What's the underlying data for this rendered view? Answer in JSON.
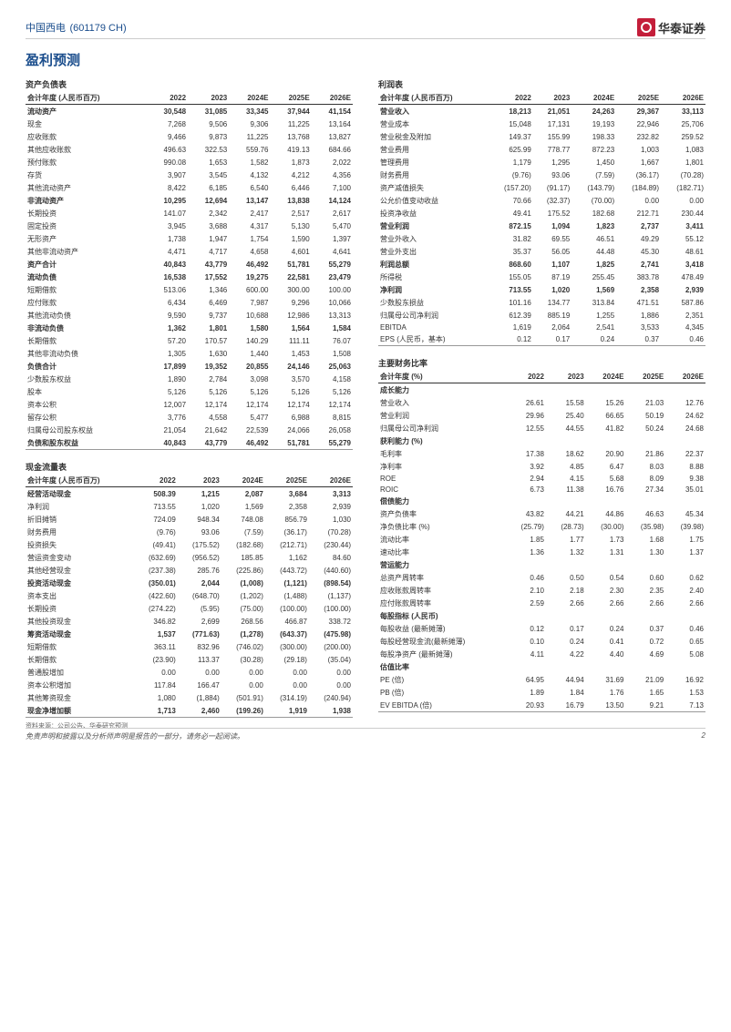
{
  "company": "中国西电",
  "ticker": "(601179 CH)",
  "brand": "华泰证券",
  "title": "盈利预测",
  "years": [
    "2022",
    "2023",
    "2024E",
    "2025E",
    "2026E"
  ],
  "bs": {
    "title": "资产负债表",
    "hdr": "会计年度 (人民币百万)",
    "rows": [
      {
        "l": "流动资产",
        "v": [
          "30,548",
          "31,085",
          "33,345",
          "37,944",
          "41,154"
        ],
        "b": 1
      },
      {
        "l": "现金",
        "v": [
          "7,268",
          "9,506",
          "9,306",
          "11,225",
          "13,164"
        ]
      },
      {
        "l": "应收账款",
        "v": [
          "9,466",
          "9,873",
          "11,225",
          "13,768",
          "13,827"
        ]
      },
      {
        "l": "其他应收账款",
        "v": [
          "496.63",
          "322.53",
          "559.76",
          "419.13",
          "684.66"
        ]
      },
      {
        "l": "预付账款",
        "v": [
          "990.08",
          "1,653",
          "1,582",
          "1,873",
          "2,022"
        ]
      },
      {
        "l": "存货",
        "v": [
          "3,907",
          "3,545",
          "4,132",
          "4,212",
          "4,356"
        ]
      },
      {
        "l": "其他流动资产",
        "v": [
          "8,422",
          "6,185",
          "6,540",
          "6,446",
          "7,100"
        ]
      },
      {
        "l": "非流动资产",
        "v": [
          "10,295",
          "12,694",
          "13,147",
          "13,838",
          "14,124"
        ],
        "b": 1
      },
      {
        "l": "长期投资",
        "v": [
          "141.07",
          "2,342",
          "2,417",
          "2,517",
          "2,617"
        ]
      },
      {
        "l": "固定投资",
        "v": [
          "3,945",
          "3,688",
          "4,317",
          "5,130",
          "5,470"
        ]
      },
      {
        "l": "无形资产",
        "v": [
          "1,738",
          "1,947",
          "1,754",
          "1,590",
          "1,397"
        ]
      },
      {
        "l": "其他非流动资产",
        "v": [
          "4,471",
          "4,717",
          "4,658",
          "4,601",
          "4,641"
        ]
      },
      {
        "l": "资产合计",
        "v": [
          "40,843",
          "43,779",
          "46,492",
          "51,781",
          "55,279"
        ],
        "b": 1
      },
      {
        "l": "流动负债",
        "v": [
          "16,538",
          "17,552",
          "19,275",
          "22,581",
          "23,479"
        ],
        "b": 1
      },
      {
        "l": "短期借款",
        "v": [
          "513.06",
          "1,346",
          "600.00",
          "300.00",
          "100.00"
        ]
      },
      {
        "l": "应付账款",
        "v": [
          "6,434",
          "6,469",
          "7,987",
          "9,296",
          "10,066"
        ]
      },
      {
        "l": "其他流动负债",
        "v": [
          "9,590",
          "9,737",
          "10,688",
          "12,986",
          "13,313"
        ]
      },
      {
        "l": "非流动负债",
        "v": [
          "1,362",
          "1,801",
          "1,580",
          "1,564",
          "1,584"
        ],
        "b": 1
      },
      {
        "l": "长期借款",
        "v": [
          "57.20",
          "170.57",
          "140.29",
          "111.11",
          "76.07"
        ]
      },
      {
        "l": "其他非流动负债",
        "v": [
          "1,305",
          "1,630",
          "1,440",
          "1,453",
          "1,508"
        ]
      },
      {
        "l": "负债合计",
        "v": [
          "17,899",
          "19,352",
          "20,855",
          "24,146",
          "25,063"
        ],
        "b": 1
      },
      {
        "l": "少数股东权益",
        "v": [
          "1,890",
          "2,784",
          "3,098",
          "3,570",
          "4,158"
        ]
      },
      {
        "l": "股本",
        "v": [
          "5,126",
          "5,126",
          "5,126",
          "5,126",
          "5,126"
        ]
      },
      {
        "l": "资本公积",
        "v": [
          "12,007",
          "12,174",
          "12,174",
          "12,174",
          "12,174"
        ]
      },
      {
        "l": "留存公积",
        "v": [
          "3,776",
          "4,558",
          "5,477",
          "6,988",
          "8,815"
        ]
      },
      {
        "l": "归属母公司股东权益",
        "v": [
          "21,054",
          "21,642",
          "22,539",
          "24,066",
          "26,058"
        ]
      },
      {
        "l": "负债和股东权益",
        "v": [
          "40,843",
          "43,779",
          "46,492",
          "51,781",
          "55,279"
        ],
        "b": 1,
        "bb": 1
      }
    ]
  },
  "cf": {
    "title": "现金流量表",
    "hdr": "会计年度 (人民币百万)",
    "rows": [
      {
        "l": "经营活动现金",
        "v": [
          "508.39",
          "1,215",
          "2,087",
          "3,684",
          "3,313"
        ],
        "b": 1
      },
      {
        "l": "净利润",
        "v": [
          "713.55",
          "1,020",
          "1,569",
          "2,358",
          "2,939"
        ]
      },
      {
        "l": "折旧摊销",
        "v": [
          "724.09",
          "948.34",
          "748.08",
          "856.79",
          "1,030"
        ]
      },
      {
        "l": "财务费用",
        "v": [
          "(9.76)",
          "93.06",
          "(7.59)",
          "(36.17)",
          "(70.28)"
        ]
      },
      {
        "l": "投资损失",
        "v": [
          "(49.41)",
          "(175.52)",
          "(182.68)",
          "(212.71)",
          "(230.44)"
        ]
      },
      {
        "l": "营运资金变动",
        "v": [
          "(632.69)",
          "(956.52)",
          "185.85",
          "1,162",
          "84.60"
        ]
      },
      {
        "l": "其他经营现金",
        "v": [
          "(237.38)",
          "285.76",
          "(225.86)",
          "(443.72)",
          "(440.60)"
        ]
      },
      {
        "l": "投资活动现金",
        "v": [
          "(350.01)",
          "2,044",
          "(1,008)",
          "(1,121)",
          "(898.54)"
        ],
        "b": 1
      },
      {
        "l": "资本支出",
        "v": [
          "(422.60)",
          "(648.70)",
          "(1,202)",
          "(1,488)",
          "(1,137)"
        ]
      },
      {
        "l": "长期投资",
        "v": [
          "(274.22)",
          "(5.95)",
          "(75.00)",
          "(100.00)",
          "(100.00)"
        ]
      },
      {
        "l": "其他投资现金",
        "v": [
          "346.82",
          "2,699",
          "268.56",
          "466.87",
          "338.72"
        ]
      },
      {
        "l": "筹资活动现金",
        "v": [
          "1,537",
          "(771.63)",
          "(1,278)",
          "(643.37)",
          "(475.98)"
        ],
        "b": 1
      },
      {
        "l": "短期借款",
        "v": [
          "363.11",
          "832.96",
          "(746.02)",
          "(300.00)",
          "(200.00)"
        ]
      },
      {
        "l": "长期借款",
        "v": [
          "(23.90)",
          "113.37",
          "(30.28)",
          "(29.18)",
          "(35.04)"
        ]
      },
      {
        "l": "普通股增加",
        "v": [
          "0.00",
          "0.00",
          "0.00",
          "0.00",
          "0.00"
        ]
      },
      {
        "l": "资本公积增加",
        "v": [
          "117.84",
          "166.47",
          "0.00",
          "0.00",
          "0.00"
        ]
      },
      {
        "l": "其他筹资现金",
        "v": [
          "1,080",
          "(1,884)",
          "(501.91)",
          "(314.19)",
          "(240.94)"
        ]
      },
      {
        "l": "现金净增加额",
        "v": [
          "1,713",
          "2,460",
          "(199.26)",
          "1,919",
          "1,938"
        ],
        "b": 1,
        "bb": 1
      }
    ]
  },
  "is": {
    "title": "利润表",
    "hdr": "会计年度 (人民币百万)",
    "rows": [
      {
        "l": "营业收入",
        "v": [
          "18,213",
          "21,051",
          "24,263",
          "29,367",
          "33,113"
        ],
        "b": 1
      },
      {
        "l": "营业成本",
        "v": [
          "15,048",
          "17,131",
          "19,193",
          "22,946",
          "25,706"
        ]
      },
      {
        "l": "营业税金及附加",
        "v": [
          "149.37",
          "155.99",
          "198.33",
          "232.82",
          "259.52"
        ]
      },
      {
        "l": "营业费用",
        "v": [
          "625.99",
          "778.77",
          "872.23",
          "1,003",
          "1,083"
        ]
      },
      {
        "l": "管理费用",
        "v": [
          "1,179",
          "1,295",
          "1,450",
          "1,667",
          "1,801"
        ]
      },
      {
        "l": "财务费用",
        "v": [
          "(9.76)",
          "93.06",
          "(7.59)",
          "(36.17)",
          "(70.28)"
        ]
      },
      {
        "l": "资产减值损失",
        "v": [
          "(157.20)",
          "(91.17)",
          "(143.79)",
          "(184.89)",
          "(182.71)"
        ]
      },
      {
        "l": "公允价值变动收益",
        "v": [
          "70.66",
          "(32.37)",
          "(70.00)",
          "0.00",
          "0.00"
        ]
      },
      {
        "l": "投资净收益",
        "v": [
          "49.41",
          "175.52",
          "182.68",
          "212.71",
          "230.44"
        ]
      },
      {
        "l": "营业利润",
        "v": [
          "872.15",
          "1,094",
          "1,823",
          "2,737",
          "3,411"
        ],
        "b": 1
      },
      {
        "l": "营业外收入",
        "v": [
          "31.82",
          "69.55",
          "46.51",
          "49.29",
          "55.12"
        ]
      },
      {
        "l": "营业外支出",
        "v": [
          "35.37",
          "56.05",
          "44.48",
          "45.30",
          "48.61"
        ]
      },
      {
        "l": "利润总额",
        "v": [
          "868.60",
          "1,107",
          "1,825",
          "2,741",
          "3,418"
        ],
        "b": 1
      },
      {
        "l": "所得税",
        "v": [
          "155.05",
          "87.19",
          "255.45",
          "383.78",
          "478.49"
        ]
      },
      {
        "l": "净利润",
        "v": [
          "713.55",
          "1,020",
          "1,569",
          "2,358",
          "2,939"
        ],
        "b": 1
      },
      {
        "l": "少数股东损益",
        "v": [
          "101.16",
          "134.77",
          "313.84",
          "471.51",
          "587.86"
        ]
      },
      {
        "l": "归属母公司净利润",
        "v": [
          "612.39",
          "885.19",
          "1,255",
          "1,886",
          "2,351"
        ]
      },
      {
        "l": "EBITDA",
        "v": [
          "1,619",
          "2,064",
          "2,541",
          "3,533",
          "4,345"
        ]
      },
      {
        "l": "EPS (人民币，基本)",
        "v": [
          "0.12",
          "0.17",
          "0.24",
          "0.37",
          "0.46"
        ],
        "bb": 1
      }
    ]
  },
  "ratio": {
    "title": "主要财务比率",
    "hdr": "会计年度 (%)",
    "groups": [
      {
        "g": "成长能力",
        "rows": [
          {
            "l": "营业收入",
            "v": [
              "26.61",
              "15.58",
              "15.26",
              "21.03",
              "12.76"
            ]
          },
          {
            "l": "营业利润",
            "v": [
              "29.96",
              "25.40",
              "66.65",
              "50.19",
              "24.62"
            ]
          },
          {
            "l": "归属母公司净利润",
            "v": [
              "12.55",
              "44.55",
              "41.82",
              "50.24",
              "24.68"
            ]
          }
        ]
      },
      {
        "g": "获利能力 (%)",
        "rows": [
          {
            "l": "毛利率",
            "v": [
              "17.38",
              "18.62",
              "20.90",
              "21.86",
              "22.37"
            ]
          },
          {
            "l": "净利率",
            "v": [
              "3.92",
              "4.85",
              "6.47",
              "8.03",
              "8.88"
            ]
          },
          {
            "l": "ROE",
            "v": [
              "2.94",
              "4.15",
              "5.68",
              "8.09",
              "9.38"
            ]
          },
          {
            "l": "ROIC",
            "v": [
              "6.73",
              "11.38",
              "16.76",
              "27.34",
              "35.01"
            ]
          }
        ]
      },
      {
        "g": "偿债能力",
        "rows": [
          {
            "l": "资产负债率",
            "v": [
              "43.82",
              "44.21",
              "44.86",
              "46.63",
              "45.34"
            ]
          },
          {
            "l": "净负债比率 (%)",
            "v": [
              "(25.79)",
              "(28.73)",
              "(30.00)",
              "(35.98)",
              "(39.98)"
            ]
          },
          {
            "l": "流动比率",
            "v": [
              "1.85",
              "1.77",
              "1.73",
              "1.68",
              "1.75"
            ]
          },
          {
            "l": "速动比率",
            "v": [
              "1.36",
              "1.32",
              "1.31",
              "1.30",
              "1.37"
            ]
          }
        ]
      },
      {
        "g": "营运能力",
        "rows": [
          {
            "l": "总资产周转率",
            "v": [
              "0.46",
              "0.50",
              "0.54",
              "0.60",
              "0.62"
            ]
          },
          {
            "l": "应收账款周转率",
            "v": [
              "2.10",
              "2.18",
              "2.30",
              "2.35",
              "2.40"
            ]
          },
          {
            "l": "应付账款周转率",
            "v": [
              "2.59",
              "2.66",
              "2.66",
              "2.66",
              "2.66"
            ]
          }
        ]
      },
      {
        "g": "每股指标 (人民币)",
        "rows": [
          {
            "l": "每股收益 (最新摊薄)",
            "v": [
              "0.12",
              "0.17",
              "0.24",
              "0.37",
              "0.46"
            ]
          },
          {
            "l": "每股经营现金流(最新摊薄)",
            "v": [
              "0.10",
              "0.24",
              "0.41",
              "0.72",
              "0.65"
            ]
          },
          {
            "l": "每股净资产 (最新摊薄)",
            "v": [
              "4.11",
              "4.22",
              "4.40",
              "4.69",
              "5.08"
            ]
          }
        ]
      },
      {
        "g": "估值比率",
        "rows": [
          {
            "l": "PE (倍)",
            "v": [
              "64.95",
              "44.94",
              "31.69",
              "21.09",
              "16.92"
            ]
          },
          {
            "l": "PB (倍)",
            "v": [
              "1.89",
              "1.84",
              "1.76",
              "1.65",
              "1.53"
            ]
          },
          {
            "l": "EV EBITDA (倍)",
            "v": [
              "20.93",
              "16.79",
              "13.50",
              "9.21",
              "7.13"
            ]
          }
        ]
      }
    ]
  },
  "source": "资料来源：公司公告、华泰研究预测",
  "disclaimer": "免责声明和披露以及分析师声明是报告的一部分，请务必一起阅读。",
  "page": "2"
}
